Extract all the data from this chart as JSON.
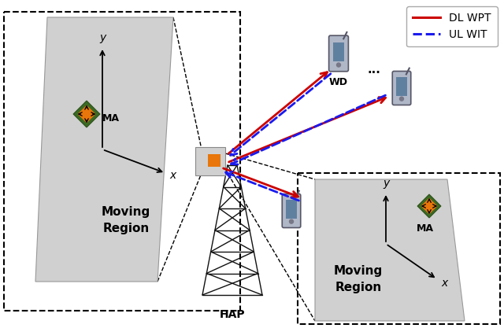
{
  "bg_color": "#ffffff",
  "panel_color": "#d0d0d0",
  "orange_color": "#e8760a",
  "green_color": "#3a6b25",
  "dl_color": "#cc0000",
  "ul_color": "#1a1aee",
  "tower_color": "#111111",
  "legend_dl": "DL WPT",
  "legend_ul": "UL WIT",
  "hap_label": "HAP",
  "wd_label": "WD",
  "ma_label": "MA",
  "moving_region": "Moving\nRegion"
}
